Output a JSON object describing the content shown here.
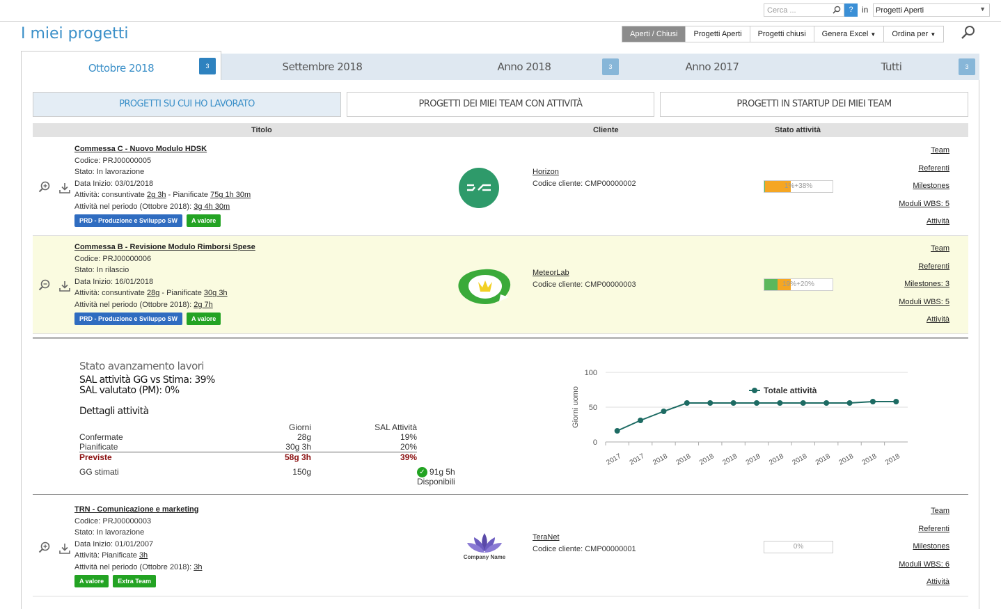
{
  "topbar": {
    "search_placeholder": "Cerca ...",
    "help_label": "?",
    "in_label": "in",
    "scope_value": "Progetti Aperti"
  },
  "page_title": "I miei progetti",
  "toolbar": {
    "buttons": [
      "Aperti / Chiusi",
      "Progetti Aperti",
      "Progetti chiusi",
      "Genera Excel",
      "Ordina per"
    ],
    "active_index": 0
  },
  "tabs": [
    {
      "label": "Ottobre 2018",
      "badge": "3"
    },
    {
      "label": "Settembre 2018",
      "badge": ""
    },
    {
      "label": "Anno 2018",
      "badge": "3"
    },
    {
      "label": "Anno 2017",
      "badge": ""
    },
    {
      "label": "Tutti",
      "badge": "3"
    }
  ],
  "filters": [
    "PROGETTI SU CUI HO LAVORATO",
    "PROGETTI DEI MIEI TEAM CON ATTIVITÀ",
    "PROGETTI IN STARTUP DEI MIEI TEAM"
  ],
  "table_headers": {
    "title": "Titolo",
    "client": "Cliente",
    "status": "Stato attività"
  },
  "projects": [
    {
      "name": "Commessa C - Nuovo Modulo HDSK",
      "code": "Codice: PRJ00000005",
      "state": "Stato: In lavorazione",
      "start": "Data Inizio: 03/01/2018",
      "activity_prefix": "Attività: consuntivate ",
      "activity_done": "2g 3h",
      "activity_mid": " - Pianificate ",
      "activity_planned": "75g 1h 30m",
      "period_prefix": "Attività nel periodo (Ottobre 2018): ",
      "period_value": "3g 4h 30m",
      "badges": [
        "PRD - Produzione e Sviluppo SW",
        "A valore"
      ],
      "client_name": "Horizon",
      "client_code": "Codice cliente: CMP00000002",
      "progress_text": "1%+38%",
      "progress_green": 1,
      "progress_orange": 38,
      "links": [
        "Team",
        "Referenti",
        "Milestones",
        "Moduli WBS: 5",
        "Attività"
      ]
    },
    {
      "name": "Commessa B - Revisione Modulo Rimborsi Spese",
      "code": "Codice: PRJ00000006",
      "state": "Stato: In rilascio",
      "start": "Data Inizio: 16/01/2018",
      "activity_prefix": "Attività: consuntivate ",
      "activity_done": "28g",
      "activity_mid": " - Pianificate ",
      "activity_planned": "30g 3h",
      "period_prefix": "Attività nel periodo (Ottobre 2018): ",
      "period_value": "2g 7h",
      "badges": [
        "PRD - Produzione e Sviluppo SW",
        "A valore"
      ],
      "client_name": "MeteorLab",
      "client_code": "Codice cliente: CMP00000003",
      "progress_text": "19%+20%",
      "progress_green": 19,
      "progress_orange": 20,
      "links": [
        "Team",
        "Referenti",
        "Milestones: 3",
        "Moduli WBS: 5",
        "Attività"
      ]
    },
    {
      "name": "TRN - Comunicazione e marketing",
      "code": "Codice: PRJ00000003",
      "state": "Stato: In lavorazione",
      "start": "Data Inizio: 01/01/2007",
      "activity_prefix": "Attività: Pianificate ",
      "activity_done": "3h",
      "period_prefix": "Attività nel periodo (Ottobre 2018): ",
      "period_value": "3h",
      "badges": [
        "A valore",
        "Extra Team"
      ],
      "client_name": "TeraNet",
      "client_code": "Codice cliente: CMP00000001",
      "logo_text": "Company Name",
      "progress_text": "0%",
      "progress_green": 0,
      "progress_orange": 0,
      "links": [
        "Team",
        "Referenti",
        "Milestones",
        "Moduli WBS: 6",
        "Attività"
      ]
    }
  ],
  "sal": {
    "title": "Stato avanzamento lavori",
    "line1": "SAL attività GG vs Stima: 39%",
    "line2": "SAL valutato (PM): 0%",
    "details_title": "Dettagli attività",
    "col_days": "Giorni",
    "col_sal": "SAL Attività",
    "rows": [
      {
        "label": "Confermate",
        "days": "28g",
        "sal": "19%"
      },
      {
        "label": "Pianificate",
        "days": "30g 3h",
        "sal": "20%"
      },
      {
        "label": "Previste",
        "days": "58g 3h",
        "sal": "39%"
      }
    ],
    "estimate_label": "GG stimati",
    "estimate_days": "150g",
    "available": "91g 5h Disponibili"
  },
  "colors": {
    "accent": "#3a8fc8",
    "green": "#23a323",
    "blue_badge": "#2f6cc0",
    "chart_line": "#1d6b63"
  },
  "chart_data": {
    "type": "line",
    "ylabel": "Giorni uomo",
    "ylim": [
      0,
      100
    ],
    "yticks": [
      0,
      50,
      100
    ],
    "x": [
      "2017",
      "2017",
      "2018",
      "2018",
      "2018",
      "2018",
      "2018",
      "2018",
      "2018",
      "2018",
      "2018",
      "2018",
      "2018"
    ],
    "series": [
      {
        "name": "Totale attività",
        "values": [
          16,
          31,
          44,
          56,
          56,
          56,
          56,
          56,
          56,
          56,
          56,
          58,
          58
        ]
      }
    ],
    "legend": "top-right",
    "grid": true
  }
}
